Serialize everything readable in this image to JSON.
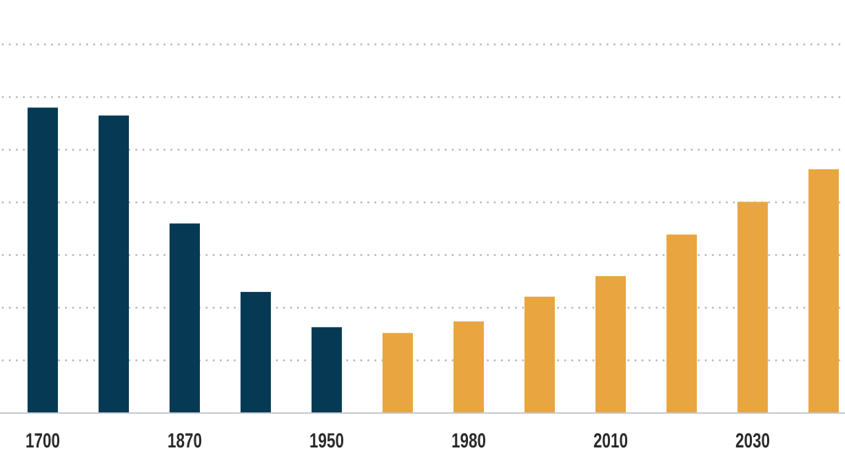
{
  "chart_data": {
    "type": "bar",
    "title": "",
    "xlabel": "",
    "ylabel": "",
    "grid": true,
    "legend": "none",
    "ylim": [
      0,
      7
    ],
    "grid_values": [
      1,
      2,
      3,
      4,
      5,
      6,
      7
    ],
    "categories": [
      "1700",
      "",
      "1870",
      "",
      "1950",
      "",
      "1980",
      "",
      "2010",
      "",
      "2030",
      ""
    ],
    "x_tick_labels": [
      "1700",
      "1870",
      "1950",
      "1980",
      "2010",
      "2030"
    ],
    "values": [
      5.8,
      5.65,
      3.6,
      2.3,
      1.63,
      1.52,
      1.74,
      2.21,
      2.6,
      3.39,
      4.01,
      4.63
    ],
    "bar_colors": [
      "#063a54",
      "#063a54",
      "#063a54",
      "#063a54",
      "#063a54",
      "#e9a640",
      "#e9a640",
      "#e9a640",
      "#e9a640",
      "#e9a640",
      "#e9a640",
      "#e9a640"
    ],
    "colors": {
      "historical": "#063a54",
      "projected": "#e9a640"
    }
  }
}
